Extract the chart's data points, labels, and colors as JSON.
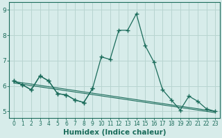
{
  "xlabel": "Humidex (Indice chaleur)",
  "background_color": "#d7ecea",
  "grid_color": "#b8d4d0",
  "line_color": "#1a6b5a",
  "x_data": [
    0,
    1,
    2,
    3,
    4,
    5,
    6,
    7,
    8,
    9,
    10,
    11,
    12,
    13,
    14,
    15,
    16,
    17,
    18,
    19,
    20,
    21,
    22,
    23
  ],
  "line_main": [
    6.2,
    6.05,
    5.85,
    6.4,
    6.2,
    5.7,
    5.65,
    5.45,
    5.35,
    5.9,
    7.15,
    7.05,
    8.2,
    8.2,
    8.85,
    7.6,
    6.95,
    5.85,
    5.45,
    5.05,
    5.6,
    5.4,
    5.1,
    5.0
  ],
  "line_short": [
    6.2,
    6.05,
    5.85,
    6.4,
    6.2,
    5.7,
    5.65,
    5.45,
    5.35,
    5.9
  ],
  "x_short": [
    0,
    1,
    2,
    3,
    4,
    5,
    6,
    7,
    8,
    9
  ],
  "trend1_x": [
    0,
    23
  ],
  "trend1_y": [
    6.18,
    5.0
  ],
  "trend2_x": [
    0,
    23
  ],
  "trend2_y": [
    6.12,
    4.95
  ],
  "ylim": [
    4.75,
    9.3
  ],
  "xlim": [
    -0.5,
    23.5
  ],
  "yticks": [
    5,
    6,
    7,
    8,
    9
  ],
  "xtick_fontsize": 5.5,
  "ytick_fontsize": 6.5,
  "xlabel_fontsize": 7.5
}
